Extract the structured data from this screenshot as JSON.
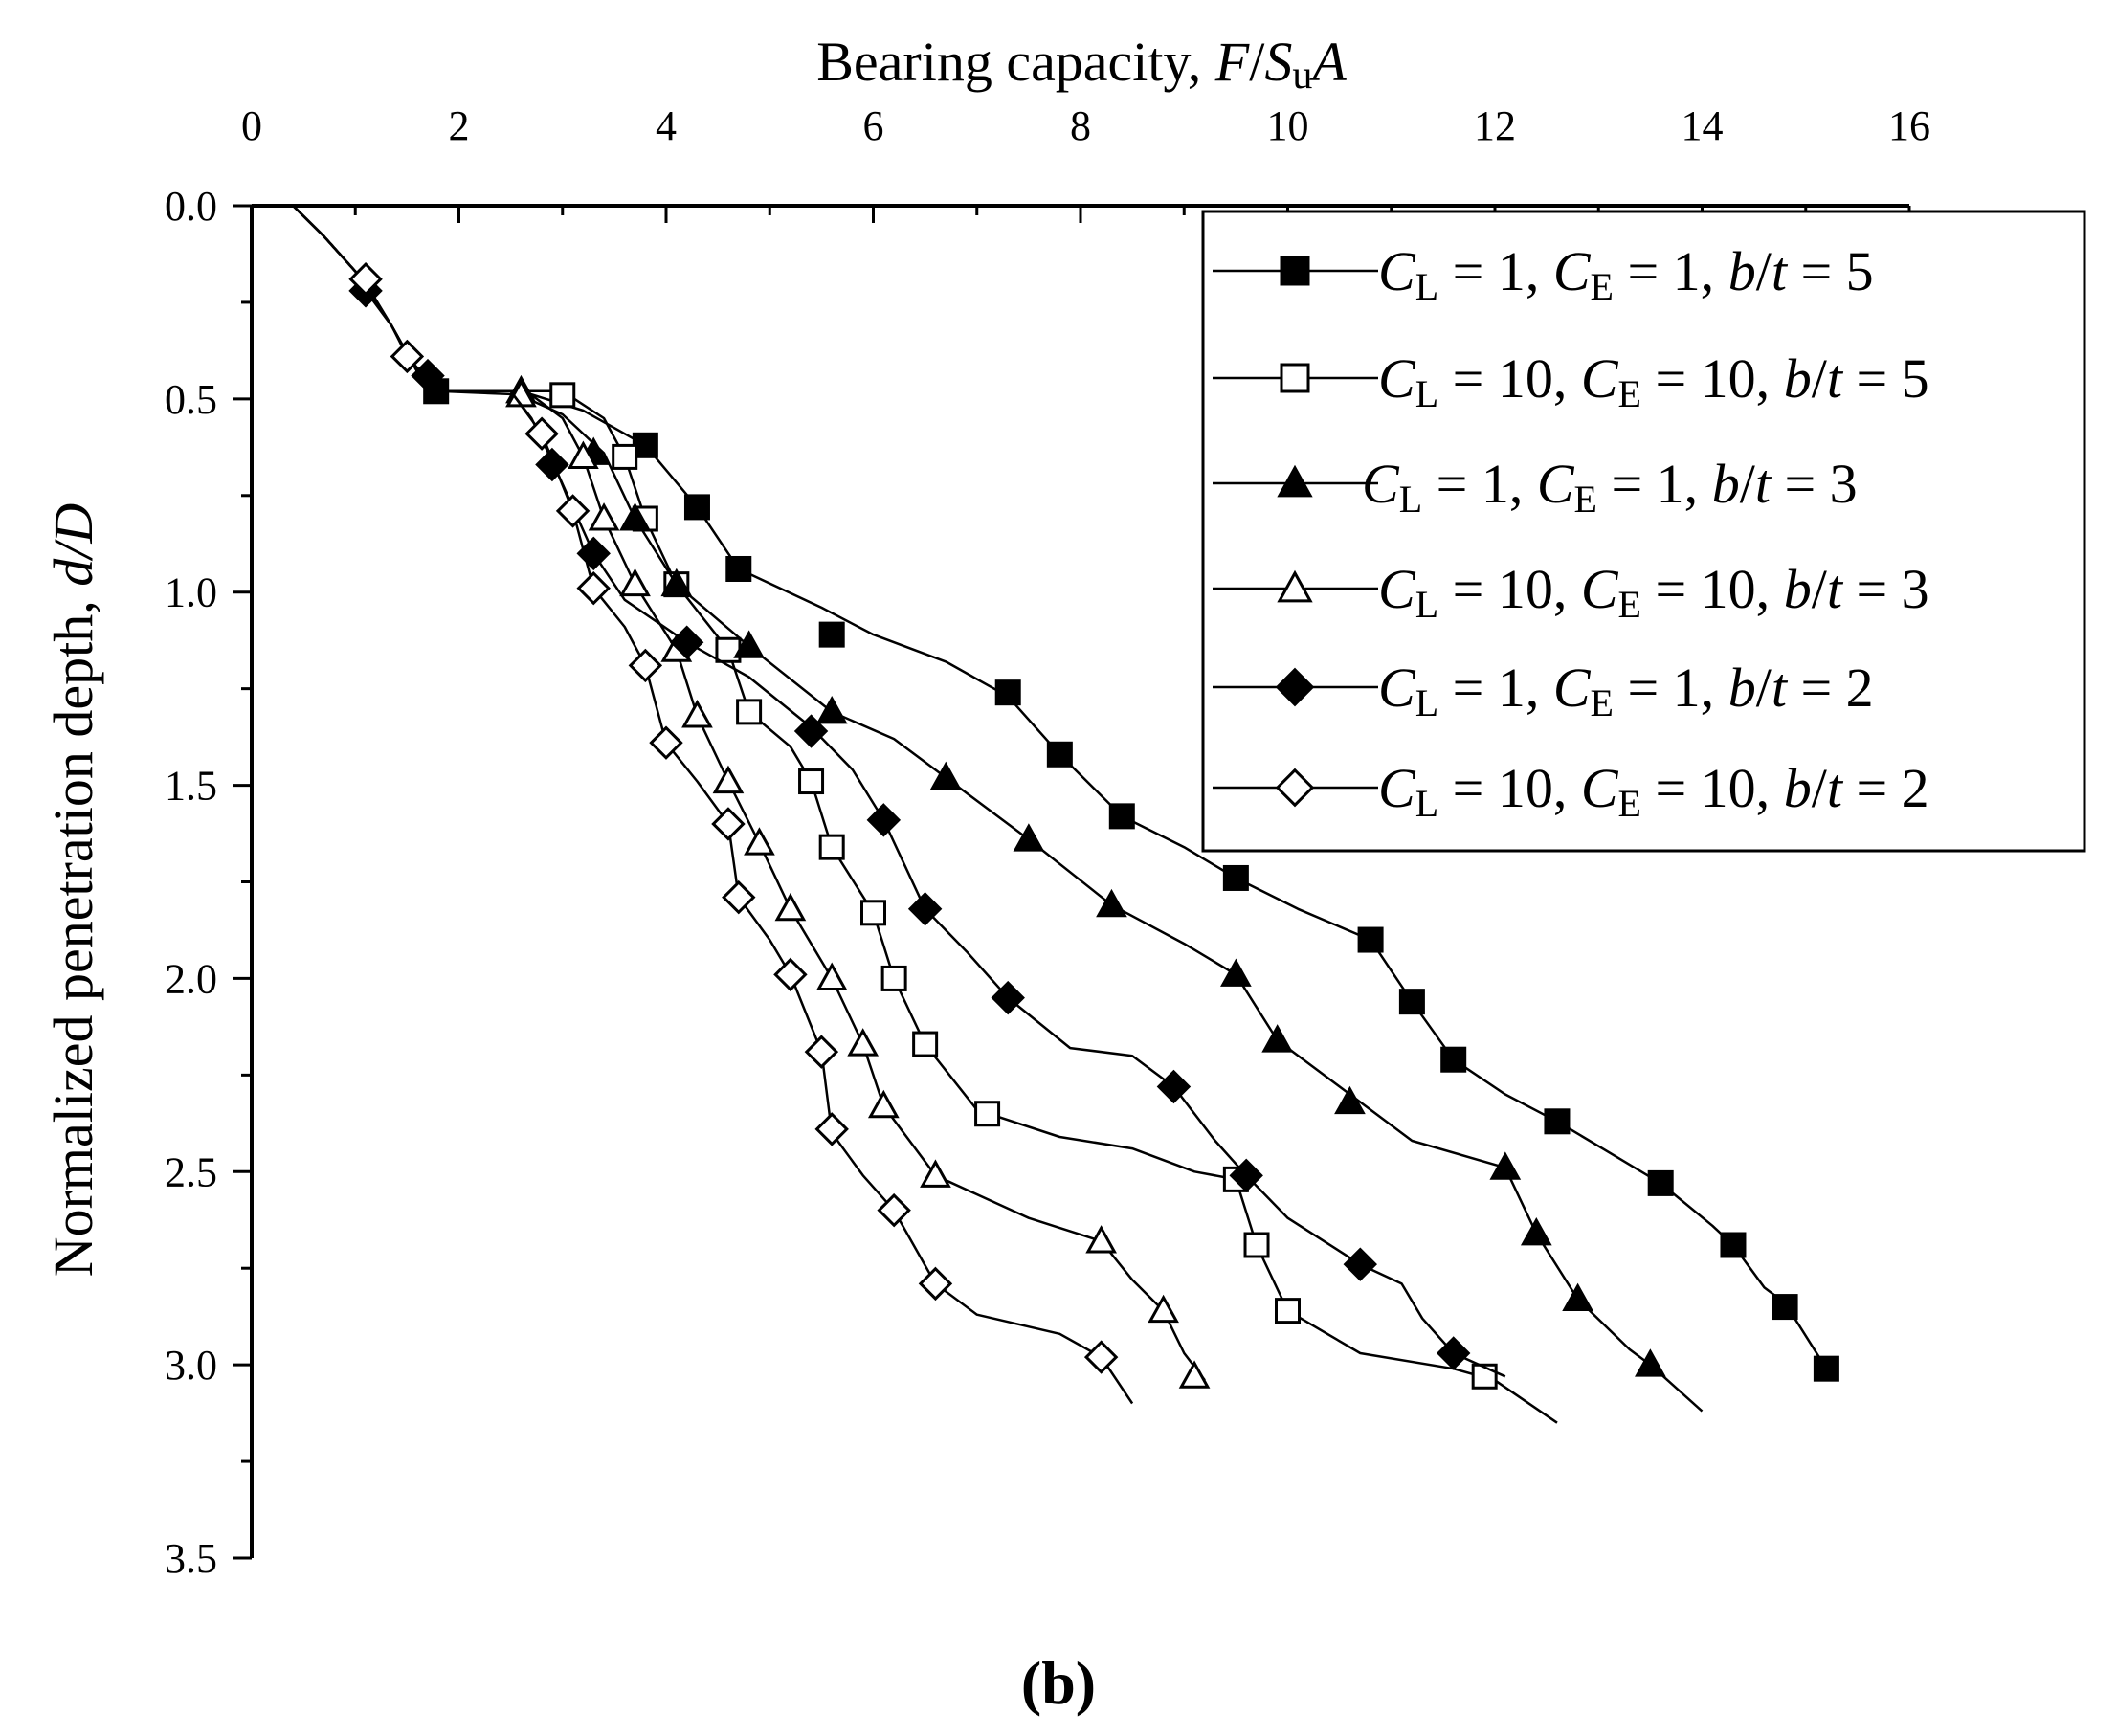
{
  "chart_data": {
    "type": "line",
    "panel_label": "(b)",
    "xaxis": {
      "title_prefix": "Bearing capacity, ",
      "title_math": [
        "F",
        "/",
        "S",
        "u",
        "A"
      ],
      "ticks": [
        0,
        2,
        4,
        6,
        8,
        10,
        12,
        14,
        16
      ],
      "tick_labels": [
        "0",
        "2",
        "4",
        "6",
        "8",
        "10",
        "12",
        "14",
        "16"
      ],
      "range": [
        0,
        16
      ],
      "position": "top"
    },
    "yaxis": {
      "title_prefix": "Normalized penetration depth, ",
      "title_math": "d/D",
      "ticks": [
        0,
        0.5,
        1.0,
        1.5,
        2.0,
        2.5,
        3.0,
        3.5
      ],
      "tick_labels": [
        "0.0",
        "0.5",
        "1.0",
        "1.5",
        "2.0",
        "2.5",
        "3.0",
        "3.5"
      ],
      "range": [
        0,
        3.5
      ],
      "inverted": true
    },
    "grid": false,
    "legend_position": "top-right",
    "series": [
      {
        "name": "CL = 1, CE = 1, b/t = 5",
        "legend_parts": {
          "cl": "1",
          "ce": "1",
          "bt": "5"
        },
        "marker": "square",
        "filled": true,
        "line": [
          [
            0,
            0
          ],
          [
            0.4,
            0
          ],
          [
            0.7,
            0.08
          ],
          [
            1.0,
            0.17
          ],
          [
            1.35,
            0.31
          ],
          [
            1.6,
            0.43
          ],
          [
            1.78,
            0.48
          ],
          [
            2.6,
            0.48
          ],
          [
            3.2,
            0.53
          ],
          [
            3.8,
            0.62
          ],
          [
            4.3,
            0.78
          ],
          [
            4.7,
            0.94
          ],
          [
            5.5,
            1.04
          ],
          [
            6.0,
            1.11
          ],
          [
            6.7,
            1.18
          ],
          [
            7.3,
            1.27
          ],
          [
            7.8,
            1.42
          ],
          [
            8.4,
            1.58
          ],
          [
            9.0,
            1.66
          ],
          [
            9.5,
            1.74
          ],
          [
            10.1,
            1.82
          ],
          [
            10.8,
            1.9
          ],
          [
            11.2,
            2.06
          ],
          [
            11.6,
            2.21
          ],
          [
            12.1,
            2.3
          ],
          [
            12.6,
            2.37
          ],
          [
            13.1,
            2.45
          ],
          [
            13.6,
            2.53
          ],
          [
            14.1,
            2.64
          ],
          [
            14.3,
            2.69
          ],
          [
            14.6,
            2.8
          ],
          [
            14.8,
            2.84
          ],
          [
            15.2,
            3.01
          ]
        ],
        "markers": [
          [
            1.78,
            0.48
          ],
          [
            3.8,
            0.62
          ],
          [
            4.3,
            0.78
          ],
          [
            4.7,
            0.94
          ],
          [
            5.6,
            1.11
          ],
          [
            7.3,
            1.26
          ],
          [
            7.8,
            1.42
          ],
          [
            8.4,
            1.58
          ],
          [
            9.5,
            1.74
          ],
          [
            10.8,
            1.9
          ],
          [
            11.2,
            2.06
          ],
          [
            11.6,
            2.21
          ],
          [
            12.6,
            2.37
          ],
          [
            13.6,
            2.53
          ],
          [
            14.3,
            2.69
          ],
          [
            14.8,
            2.85
          ],
          [
            15.2,
            3.01
          ]
        ]
      },
      {
        "name": "CL = 10, CE = 10, b/t = 5",
        "legend_parts": {
          "cl": "10",
          "ce": "10",
          "bt": "5"
        },
        "marker": "square",
        "filled": false,
        "line": [
          [
            0,
            0
          ],
          [
            0.4,
            0
          ],
          [
            0.7,
            0.08
          ],
          [
            1.0,
            0.17
          ],
          [
            1.35,
            0.31
          ],
          [
            1.6,
            0.43
          ],
          [
            1.8,
            0.48
          ],
          [
            2.6,
            0.48
          ],
          [
            3.0,
            0.48
          ],
          [
            3.4,
            0.55
          ],
          [
            3.6,
            0.65
          ],
          [
            3.8,
            0.81
          ],
          [
            4.1,
            0.98
          ],
          [
            4.6,
            1.15
          ],
          [
            4.8,
            1.31
          ],
          [
            5.2,
            1.4
          ],
          [
            5.4,
            1.49
          ],
          [
            5.6,
            1.66
          ],
          [
            6.0,
            1.83
          ],
          [
            6.2,
            2.0
          ],
          [
            6.5,
            2.17
          ],
          [
            7.0,
            2.34
          ],
          [
            7.8,
            2.41
          ],
          [
            8.5,
            2.44
          ],
          [
            9.1,
            2.5
          ],
          [
            9.5,
            2.52
          ],
          [
            9.7,
            2.69
          ],
          [
            10.0,
            2.86
          ],
          [
            10.7,
            2.97
          ],
          [
            11.6,
            3.01
          ],
          [
            12.0,
            3.04
          ],
          [
            12.6,
            3.15
          ]
        ],
        "markers": [
          [
            3.0,
            0.49
          ],
          [
            3.6,
            0.65
          ],
          [
            3.8,
            0.81
          ],
          [
            4.1,
            0.98
          ],
          [
            4.6,
            1.15
          ],
          [
            4.8,
            1.31
          ],
          [
            5.4,
            1.49
          ],
          [
            5.6,
            1.66
          ],
          [
            6.0,
            1.83
          ],
          [
            6.2,
            2.0
          ],
          [
            6.5,
            2.17
          ],
          [
            7.1,
            2.35
          ],
          [
            9.5,
            2.52
          ],
          [
            9.7,
            2.69
          ],
          [
            10.0,
            2.86
          ],
          [
            11.9,
            3.03
          ]
        ]
      },
      {
        "name": "CL = 1, CE = 1, b/t = 3",
        "legend_parts": {
          "cl": "1",
          "ce": "1",
          "bt": "3"
        },
        "marker": "triangle",
        "filled": true,
        "line": [
          [
            0,
            0
          ],
          [
            0.4,
            0
          ],
          [
            0.7,
            0.08
          ],
          [
            1.0,
            0.17
          ],
          [
            1.35,
            0.31
          ],
          [
            1.6,
            0.43
          ],
          [
            1.78,
            0.48
          ],
          [
            2.5,
            0.48
          ],
          [
            3.0,
            0.54
          ],
          [
            3.4,
            0.64
          ],
          [
            3.7,
            0.81
          ],
          [
            4.1,
            0.98
          ],
          [
            4.8,
            1.14
          ],
          [
            5.6,
            1.31
          ],
          [
            6.2,
            1.38
          ],
          [
            6.7,
            1.48
          ],
          [
            7.5,
            1.64
          ],
          [
            8.3,
            1.81
          ],
          [
            9.0,
            1.91
          ],
          [
            9.5,
            1.99
          ],
          [
            9.9,
            2.16
          ],
          [
            10.6,
            2.3
          ],
          [
            11.2,
            2.42
          ],
          [
            12.1,
            2.49
          ],
          [
            12.4,
            2.66
          ],
          [
            12.8,
            2.83
          ],
          [
            13.3,
            2.96
          ],
          [
            13.5,
            3.0
          ],
          [
            14.0,
            3.12
          ]
        ],
        "markers": [
          [
            2.6,
            0.48
          ],
          [
            3.3,
            0.64
          ],
          [
            3.7,
            0.81
          ],
          [
            4.1,
            0.98
          ],
          [
            4.8,
            1.14
          ],
          [
            5.6,
            1.31
          ],
          [
            6.7,
            1.48
          ],
          [
            7.5,
            1.64
          ],
          [
            8.3,
            1.81
          ],
          [
            9.5,
            1.99
          ],
          [
            9.9,
            2.16
          ],
          [
            10.6,
            2.32
          ],
          [
            12.1,
            2.49
          ],
          [
            12.4,
            2.66
          ],
          [
            12.8,
            2.83
          ],
          [
            13.5,
            3.0
          ]
        ]
      },
      {
        "name": "CL = 10, CE = 10, b/t = 3",
        "legend_parts": {
          "cl": "10",
          "ce": "10",
          "bt": "3"
        },
        "marker": "triangle",
        "filled": false,
        "line": [
          [
            0,
            0
          ],
          [
            0.4,
            0
          ],
          [
            0.7,
            0.08
          ],
          [
            1.0,
            0.17
          ],
          [
            1.35,
            0.31
          ],
          [
            1.6,
            0.43
          ],
          [
            1.8,
            0.48
          ],
          [
            2.7,
            0.49
          ],
          [
            3.0,
            0.55
          ],
          [
            3.2,
            0.65
          ],
          [
            3.4,
            0.81
          ],
          [
            3.7,
            0.98
          ],
          [
            4.1,
            1.15
          ],
          [
            4.3,
            1.32
          ],
          [
            4.6,
            1.49
          ],
          [
            4.9,
            1.65
          ],
          [
            5.2,
            1.82
          ],
          [
            5.6,
            2.0
          ],
          [
            5.9,
            2.17
          ],
          [
            6.1,
            2.33
          ],
          [
            6.6,
            2.51
          ],
          [
            7.5,
            2.62
          ],
          [
            8.2,
            2.68
          ],
          [
            8.5,
            2.78
          ],
          [
            8.8,
            2.86
          ],
          [
            9.0,
            2.97
          ],
          [
            9.2,
            3.04
          ]
        ],
        "markers": [
          [
            2.6,
            0.49
          ],
          [
            3.2,
            0.65
          ],
          [
            3.4,
            0.81
          ],
          [
            3.7,
            0.98
          ],
          [
            4.1,
            1.15
          ],
          [
            4.3,
            1.32
          ],
          [
            4.6,
            1.49
          ],
          [
            4.9,
            1.65
          ],
          [
            5.2,
            1.82
          ],
          [
            5.6,
            2.0
          ],
          [
            5.9,
            2.17
          ],
          [
            6.1,
            2.33
          ],
          [
            6.6,
            2.51
          ],
          [
            8.2,
            2.68
          ],
          [
            8.8,
            2.86
          ],
          [
            9.1,
            3.03
          ]
        ]
      },
      {
        "name": "CL = 1, CE = 1, b/t = 2",
        "legend_parts": {
          "cl": "1",
          "ce": "1",
          "bt": "2"
        },
        "marker": "diamond",
        "filled": true,
        "line": [
          [
            0,
            0
          ],
          [
            0.4,
            0
          ],
          [
            0.7,
            0.08
          ],
          [
            1.0,
            0.17
          ],
          [
            1.1,
            0.22
          ],
          [
            1.35,
            0.31
          ],
          [
            1.6,
            0.43
          ],
          [
            1.7,
            0.46
          ],
          [
            1.8,
            0.48
          ],
          [
            2.5,
            0.48
          ],
          [
            2.7,
            0.55
          ],
          [
            2.9,
            0.66
          ],
          [
            3.3,
            0.9
          ],
          [
            3.6,
            1.02
          ],
          [
            4.2,
            1.13
          ],
          [
            4.8,
            1.22
          ],
          [
            5.4,
            1.35
          ],
          [
            5.8,
            1.46
          ],
          [
            6.1,
            1.59
          ],
          [
            6.5,
            1.82
          ],
          [
            6.9,
            1.93
          ],
          [
            7.3,
            2.05
          ],
          [
            7.9,
            2.18
          ],
          [
            8.5,
            2.2
          ],
          [
            8.9,
            2.28
          ],
          [
            9.3,
            2.42
          ],
          [
            9.6,
            2.51
          ],
          [
            10.0,
            2.62
          ],
          [
            10.7,
            2.74
          ],
          [
            11.1,
            2.79
          ],
          [
            11.3,
            2.88
          ],
          [
            11.6,
            2.97
          ],
          [
            12.1,
            3.03
          ]
        ],
        "markers": [
          [
            1.1,
            0.22
          ],
          [
            1.7,
            0.44
          ],
          [
            2.9,
            0.67
          ],
          [
            3.3,
            0.9
          ],
          [
            4.2,
            1.13
          ],
          [
            5.4,
            1.36
          ],
          [
            6.1,
            1.59
          ],
          [
            6.5,
            1.82
          ],
          [
            7.3,
            2.05
          ],
          [
            8.9,
            2.28
          ],
          [
            9.6,
            2.51
          ],
          [
            10.7,
            2.74
          ],
          [
            11.6,
            2.97
          ]
        ]
      },
      {
        "name": "CL = 10, CE = 10, b/t = 2",
        "legend_parts": {
          "cl": "10",
          "ce": "10",
          "bt": "2"
        },
        "marker": "diamond",
        "filled": false,
        "line": [
          [
            0,
            0
          ],
          [
            0.4,
            0
          ],
          [
            0.7,
            0.08
          ],
          [
            1.0,
            0.17
          ],
          [
            1.1,
            0.2
          ],
          [
            1.35,
            0.31
          ],
          [
            1.5,
            0.39
          ],
          [
            1.8,
            0.48
          ],
          [
            2.5,
            0.48
          ],
          [
            2.8,
            0.59
          ],
          [
            3.1,
            0.79
          ],
          [
            3.3,
            0.99
          ],
          [
            3.6,
            1.09
          ],
          [
            3.8,
            1.19
          ],
          [
            4.0,
            1.39
          ],
          [
            4.3,
            1.49
          ],
          [
            4.6,
            1.6
          ],
          [
            4.7,
            1.79
          ],
          [
            5.0,
            1.9
          ],
          [
            5.2,
            1.99
          ],
          [
            5.5,
            2.19
          ],
          [
            5.6,
            2.4
          ],
          [
            5.9,
            2.51
          ],
          [
            6.2,
            2.6
          ],
          [
            6.6,
            2.79
          ],
          [
            7.0,
            2.87
          ],
          [
            7.8,
            2.92
          ],
          [
            8.2,
            2.98
          ],
          [
            8.5,
            3.1
          ]
        ],
        "markers": [
          [
            1.1,
            0.19
          ],
          [
            1.5,
            0.39
          ],
          [
            2.8,
            0.59
          ],
          [
            3.1,
            0.79
          ],
          [
            3.3,
            0.99
          ],
          [
            3.8,
            1.19
          ],
          [
            4.0,
            1.39
          ],
          [
            4.6,
            1.6
          ],
          [
            4.7,
            1.79
          ],
          [
            5.2,
            1.99
          ],
          [
            5.5,
            2.19
          ],
          [
            5.6,
            2.39
          ],
          [
            6.2,
            2.6
          ],
          [
            6.6,
            2.79
          ],
          [
            8.2,
            2.98
          ]
        ]
      }
    ]
  }
}
